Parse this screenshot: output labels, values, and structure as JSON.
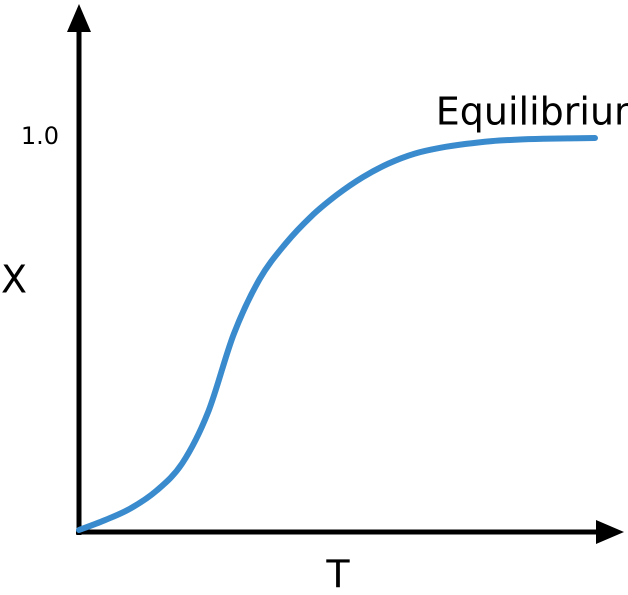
{
  "chart_data": {
    "type": "line",
    "title": "",
    "xlabel": "T",
    "ylabel": "X",
    "xlim": [
      0,
      1
    ],
    "ylim": [
      0,
      1.0
    ],
    "y_ticks": [
      {
        "value": 1.0,
        "label": "1.0"
      }
    ],
    "grid": false,
    "legend": "none",
    "annotations": [
      {
        "text": "Equilibrium",
        "x": 0.9,
        "y": 1.07
      }
    ],
    "series": [
      {
        "color": "#3a8bcd",
        "x": [
          0,
          0.05,
          0.1,
          0.15,
          0.2,
          0.25,
          0.3,
          0.35,
          0.4,
          0.45,
          0.5,
          0.55,
          0.6,
          0.65,
          0.7,
          0.75,
          0.8,
          0.85,
          0.9,
          0.95,
          1.0
        ],
        "y": [
          0,
          0.025,
          0.055,
          0.1,
          0.17,
          0.3,
          0.5,
          0.64,
          0.73,
          0.8,
          0.855,
          0.9,
          0.935,
          0.96,
          0.975,
          0.985,
          0.992,
          0.996,
          0.998,
          0.999,
          1.0
        ]
      }
    ]
  }
}
